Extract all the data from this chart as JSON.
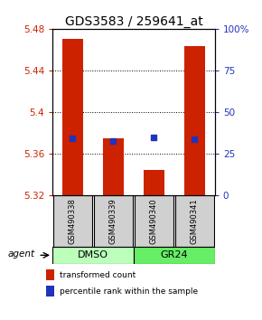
{
  "title": "GDS3583 / 259641_at",
  "samples": [
    "GSM490338",
    "GSM490339",
    "GSM490340",
    "GSM490341"
  ],
  "bar_bottoms": [
    5.32,
    5.32,
    5.32,
    5.32
  ],
  "bar_tops": [
    5.47,
    5.375,
    5.344,
    5.463
  ],
  "blue_markers": [
    5.375,
    5.372,
    5.376,
    5.374
  ],
  "ylim": [
    5.32,
    5.48
  ],
  "yticks_left": [
    5.32,
    5.36,
    5.4,
    5.44,
    5.48
  ],
  "yticks_right": [
    0,
    25,
    50,
    75,
    100
  ],
  "bar_color": "#cc2200",
  "blue_color": "#2233bb",
  "bar_width": 0.5,
  "groups": [
    {
      "label": "DMSO",
      "samples": [
        0,
        1
      ],
      "color": "#bbffbb"
    },
    {
      "label": "GR24",
      "samples": [
        2,
        3
      ],
      "color": "#66ee66"
    }
  ],
  "agent_label": "agent",
  "legend_red": "transformed count",
  "legend_blue": "percentile rank within the sample",
  "title_fontsize": 10,
  "tick_fontsize": 7.5,
  "sample_fontsize": 6.0,
  "group_fontsize": 8.0,
  "legend_fontsize": 6.5
}
